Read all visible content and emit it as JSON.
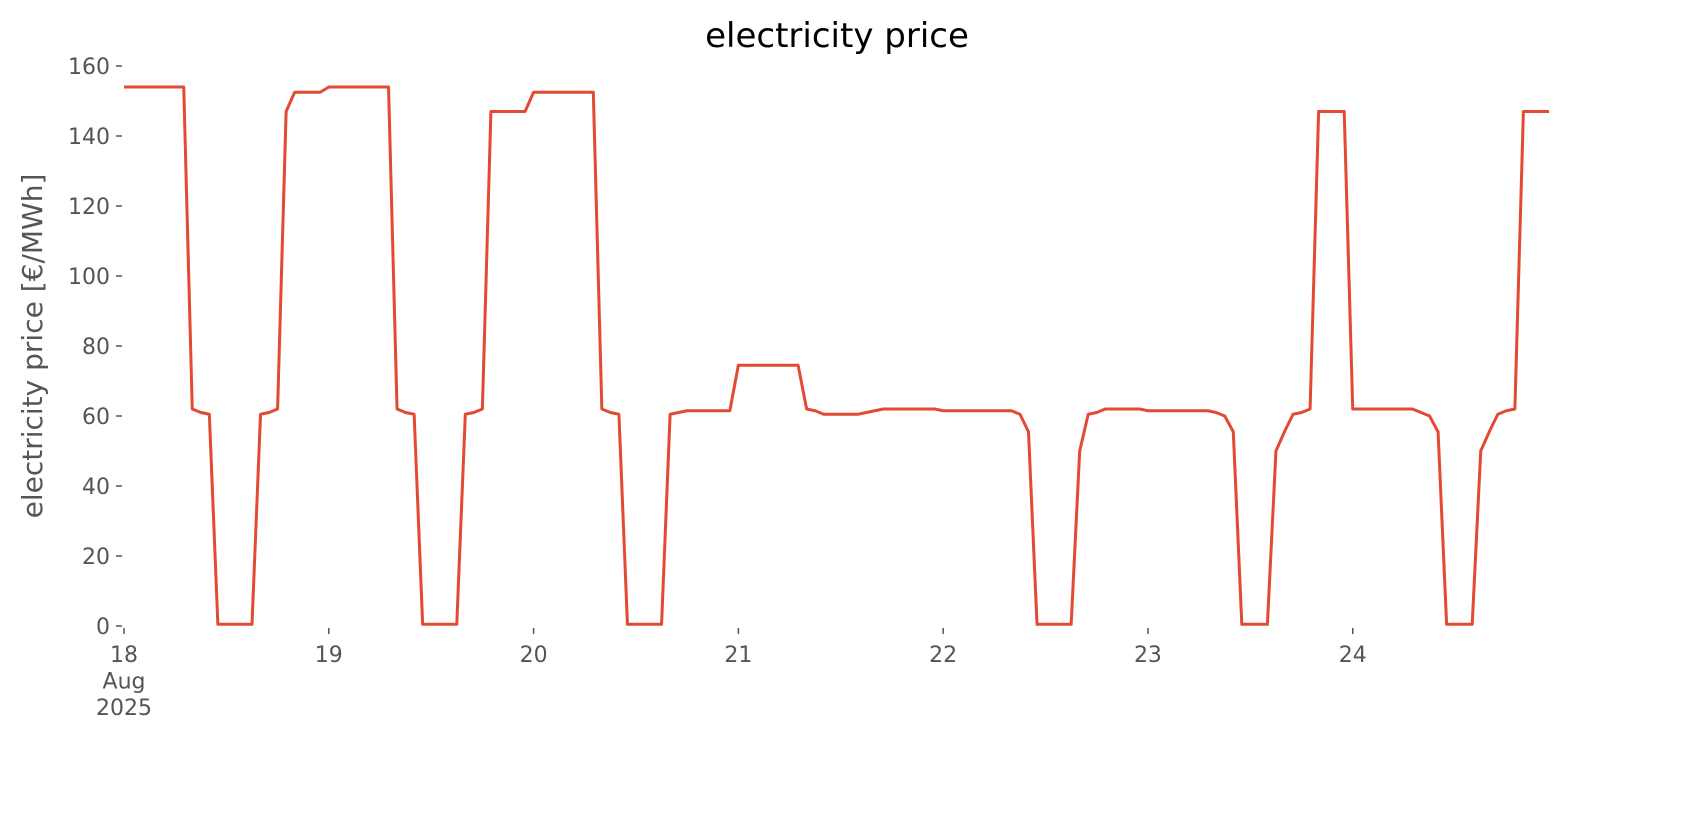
{
  "chart_data": {
    "type": "line",
    "title": "electricity price",
    "ylabel": "electricity price [€/MWh]",
    "x": [
      0,
      1,
      2,
      3,
      4,
      5,
      6,
      7,
      8,
      9,
      10,
      11,
      12,
      13,
      14,
      15,
      16,
      17,
      18,
      19,
      20,
      21,
      22,
      23,
      24,
      25,
      26,
      27,
      28,
      29,
      30,
      31,
      32,
      33,
      34,
      35,
      36,
      37,
      38,
      39,
      40,
      41,
      42,
      43,
      44,
      45,
      46,
      47,
      48,
      49,
      50,
      51,
      52,
      53,
      54,
      55,
      56,
      57,
      58,
      59,
      60,
      61,
      62,
      63,
      64,
      65,
      66,
      67,
      68,
      69,
      70,
      71,
      72,
      73,
      74,
      75,
      76,
      77,
      78,
      79,
      80,
      81,
      82,
      83,
      84,
      85,
      86,
      87,
      88,
      89,
      90,
      91,
      92,
      93,
      94,
      95,
      96,
      97,
      98,
      99,
      100,
      101,
      102,
      103,
      104,
      105,
      106,
      107,
      108,
      109,
      110,
      111,
      112,
      113,
      114,
      115,
      116,
      117,
      118,
      119,
      120,
      121,
      122,
      123,
      124,
      125,
      126,
      127,
      128,
      129,
      130,
      131,
      132,
      133,
      134,
      135,
      136,
      137,
      138,
      139,
      140,
      141,
      142,
      143,
      144,
      145,
      146,
      147,
      148,
      149,
      150,
      151,
      152,
      153,
      154,
      155,
      156,
      157,
      158,
      159,
      160,
      161,
      162,
      163,
      164,
      165,
      166,
      167
    ],
    "series": [
      {
        "name": "electricity price",
        "color": "#e24a33",
        "values": [
          154,
          154,
          154,
          154,
          154,
          154,
          154,
          154,
          62,
          61,
          60.5,
          0.5,
          0.5,
          0.5,
          0.5,
          0.5,
          60.5,
          61,
          62,
          147,
          152.5,
          152.5,
          152.5,
          152.5,
          154,
          154,
          154,
          154,
          154,
          154,
          154,
          154,
          62,
          61,
          60.5,
          0.5,
          0.5,
          0.5,
          0.5,
          0.5,
          60.5,
          61,
          62,
          147,
          147,
          147,
          147,
          147,
          152.5,
          152.5,
          152.5,
          152.5,
          152.5,
          152.5,
          152.5,
          152.5,
          62,
          61,
          60.5,
          0.5,
          0.5,
          0.5,
          0.5,
          0.5,
          60.5,
          61,
          61.5,
          61.5,
          61.5,
          61.5,
          61.5,
          61.5,
          74.5,
          74.5,
          74.5,
          74.5,
          74.5,
          74.5,
          74.5,
          74.5,
          62,
          61.5,
          60.5,
          60.5,
          60.5,
          60.5,
          60.5,
          61,
          61.5,
          62,
          62,
          62,
          62,
          62,
          62,
          62,
          61.5,
          61.5,
          61.5,
          61.5,
          61.5,
          61.5,
          61.5,
          61.5,
          61.5,
          60.5,
          55.5,
          0.5,
          0.5,
          0.5,
          0.5,
          0.5,
          50,
          60.5,
          61,
          62,
          62,
          62,
          62,
          62,
          61.5,
          61.5,
          61.5,
          61.5,
          61.5,
          61.5,
          61.5,
          61.5,
          61,
          60,
          55.5,
          0.5,
          0.5,
          0.5,
          0.5,
          50,
          55.5,
          60.5,
          61,
          62,
          147,
          147,
          147,
          147,
          62,
          62,
          62,
          62,
          62,
          62,
          62,
          62,
          61,
          60,
          55.5,
          0.5,
          0.5,
          0.5,
          0.5,
          50,
          55.5,
          60.5,
          61.5,
          62,
          147,
          147,
          147,
          147
        ]
      }
    ],
    "xlim": [
      0,
      167
    ],
    "xticks": [
      {
        "value": 0,
        "label": "18\nAug\n2025"
      },
      {
        "value": 24,
        "label": "19"
      },
      {
        "value": 48,
        "label": "20"
      },
      {
        "value": 72,
        "label": "21"
      },
      {
        "value": 96,
        "label": "22"
      },
      {
        "value": 120,
        "label": "23"
      },
      {
        "value": 144,
        "label": "24"
      }
    ],
    "ylim": [
      0,
      160
    ],
    "yticks": [
      0,
      20,
      40,
      60,
      80,
      100,
      120,
      140,
      160
    ],
    "grid": false
  }
}
